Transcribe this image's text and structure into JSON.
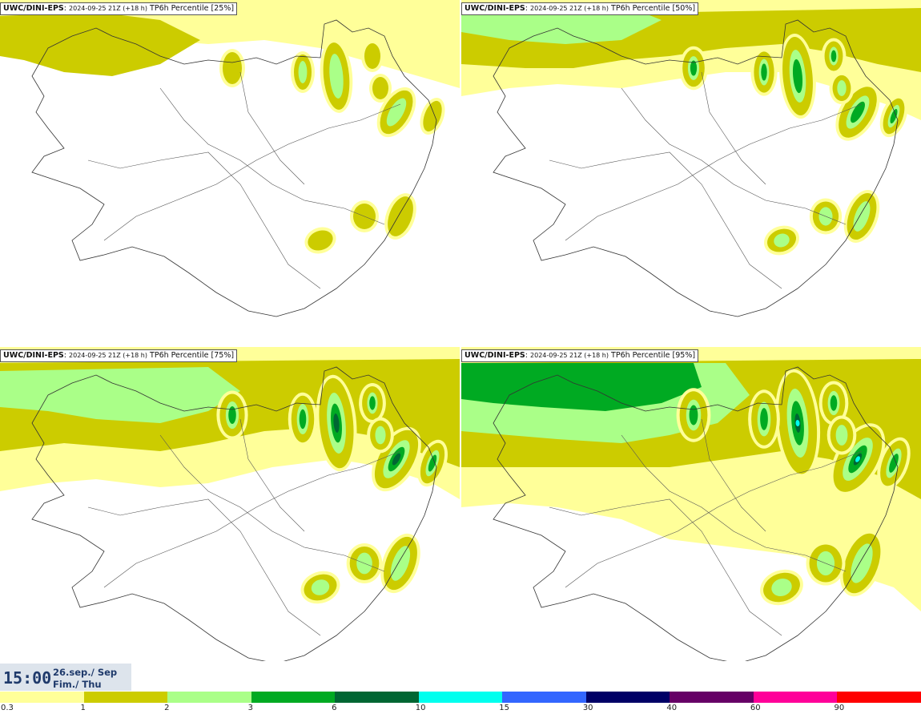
{
  "panels": [
    {
      "id": "p25",
      "prefix": "UWC/DINI-EPS",
      "run": "2024-09-25 21Z (+18 h)",
      "field": "TP6h Percentile [25%]"
    },
    {
      "id": "p50",
      "prefix": "UWC/DINI-EPS",
      "run": "2024-09-25 21Z (+18 h)",
      "field": "TP6h Percentile [50%]"
    },
    {
      "id": "p75",
      "prefix": "UWC/DINI-EPS",
      "run": "2024-09-25 21Z (+18 h)",
      "field": "TP6h Percentile [75%]"
    },
    {
      "id": "p95",
      "prefix": "UWC/DINI-EPS",
      "run": "2024-09-25 21Z (+18 h)",
      "field": "TP6h Percentile [95%]"
    }
  ],
  "footer": {
    "time": "15:00",
    "date_line1": "26.sep./ Sep",
    "date_line2": "Fim./ Thu"
  },
  "legend": {
    "labels": [
      "0.3",
      "1",
      "2",
      "3",
      "6",
      "10",
      "15",
      "30",
      "40",
      "60",
      "90"
    ],
    "colors": [
      "#ffff99",
      "#cccc00",
      "#aaff88",
      "#00aa22",
      "#006633",
      "#00ffee",
      "#3366ff",
      "#000066",
      "#660066",
      "#ff0099",
      "#ff0000"
    ]
  },
  "colors": {
    "light_yellow": "#ffff99",
    "olive": "#cccc00",
    "light_green": "#aaff88",
    "green": "#00aa22",
    "dark_green": "#006633",
    "cyan": "#00ffee"
  }
}
